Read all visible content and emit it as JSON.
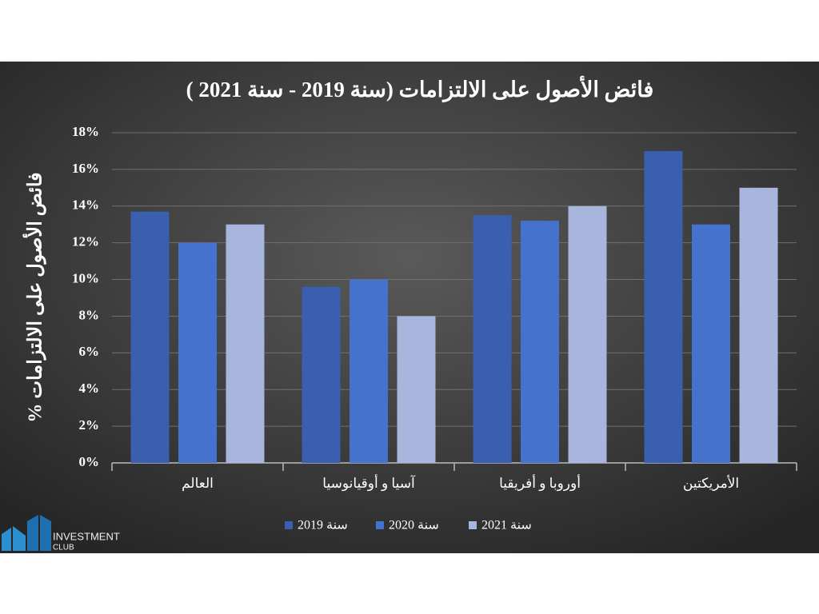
{
  "chart_data": {
    "type": "bar",
    "title": "فائض الأصول على الالتزامات (سنة 2019 - سنة 2021 )",
    "y_label": "فائض الأصول على الالتزامات %",
    "categories": [
      "العالم",
      "آسيا و أوقيانوسيا",
      "أوروبا و أفريقيا",
      "الأمريكتين"
    ],
    "series": [
      {
        "name": "سنة 2019",
        "color": "#3a5fae",
        "values": [
          13.7,
          9.6,
          13.5,
          17
        ]
      },
      {
        "name": "سنة 2020",
        "color": "#4472cc",
        "values": [
          12,
          10,
          13.2,
          13
        ]
      },
      {
        "name": "سنة 2021",
        "color": "#a8b6de",
        "values": [
          13,
          8,
          14,
          15
        ]
      }
    ],
    "ylim": [
      0,
      18
    ],
    "yticks": [
      {
        "value": 0,
        "label": "0%"
      },
      {
        "value": 2,
        "label": "2%"
      },
      {
        "value": 4,
        "label": "4%"
      },
      {
        "value": 6,
        "label": "6%"
      },
      {
        "value": 8,
        "label": "8%"
      },
      {
        "value": 10,
        "label": "10%"
      },
      {
        "value": 12,
        "label": "12%"
      },
      {
        "value": 14,
        "label": "14%"
      },
      {
        "value": 16,
        "label": "16%"
      },
      {
        "value": 18,
        "label": "18%"
      }
    ],
    "grid": true
  },
  "logo": {
    "line1": "INVESTMENT",
    "line2": "CLUB"
  }
}
